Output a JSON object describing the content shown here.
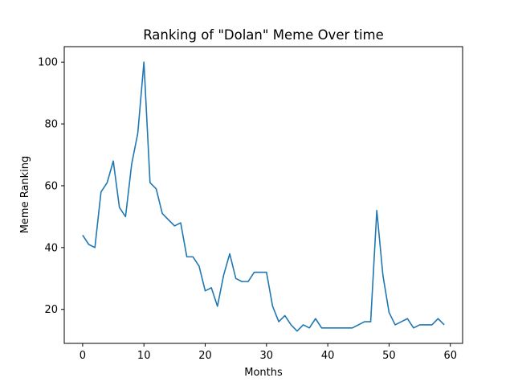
{
  "chart_data": {
    "type": "line",
    "title": "Ranking of \"Dolan\" Meme Over time",
    "xlabel": "Months",
    "ylabel": "Meme Ranking",
    "xlim": [
      -3,
      62
    ],
    "ylim": [
      9,
      105
    ],
    "xticks": [
      0,
      10,
      20,
      30,
      40,
      50,
      60
    ],
    "yticks": [
      20,
      40,
      60,
      80,
      100
    ],
    "grid": false,
    "legend": "none",
    "series": [
      {
        "color": "#1f77b4",
        "x": [
          0,
          1,
          2,
          3,
          4,
          5,
          6,
          7,
          8,
          9,
          10,
          11,
          12,
          13,
          14,
          15,
          16,
          17,
          18,
          19,
          20,
          21,
          22,
          23,
          24,
          25,
          26,
          27,
          28,
          29,
          30,
          31,
          32,
          33,
          34,
          35,
          36,
          37,
          38,
          39,
          40,
          41,
          42,
          43,
          44,
          45,
          46,
          47,
          48,
          49,
          50,
          51,
          52,
          53,
          54,
          55,
          56,
          57,
          58,
          59
        ],
        "values": [
          44,
          41,
          40,
          58,
          61,
          68,
          53,
          50,
          67,
          77,
          100,
          61,
          59,
          51,
          49,
          47,
          48,
          37,
          37,
          34,
          26,
          27,
          21,
          31,
          38,
          30,
          29,
          29,
          32,
          32,
          32,
          21,
          16,
          18,
          15,
          13,
          15,
          14,
          17,
          14,
          14,
          14,
          14,
          14,
          14,
          15,
          16,
          16,
          52,
          31,
          19,
          15,
          16,
          17,
          14,
          15,
          15,
          15,
          17,
          15
        ]
      }
    ]
  }
}
